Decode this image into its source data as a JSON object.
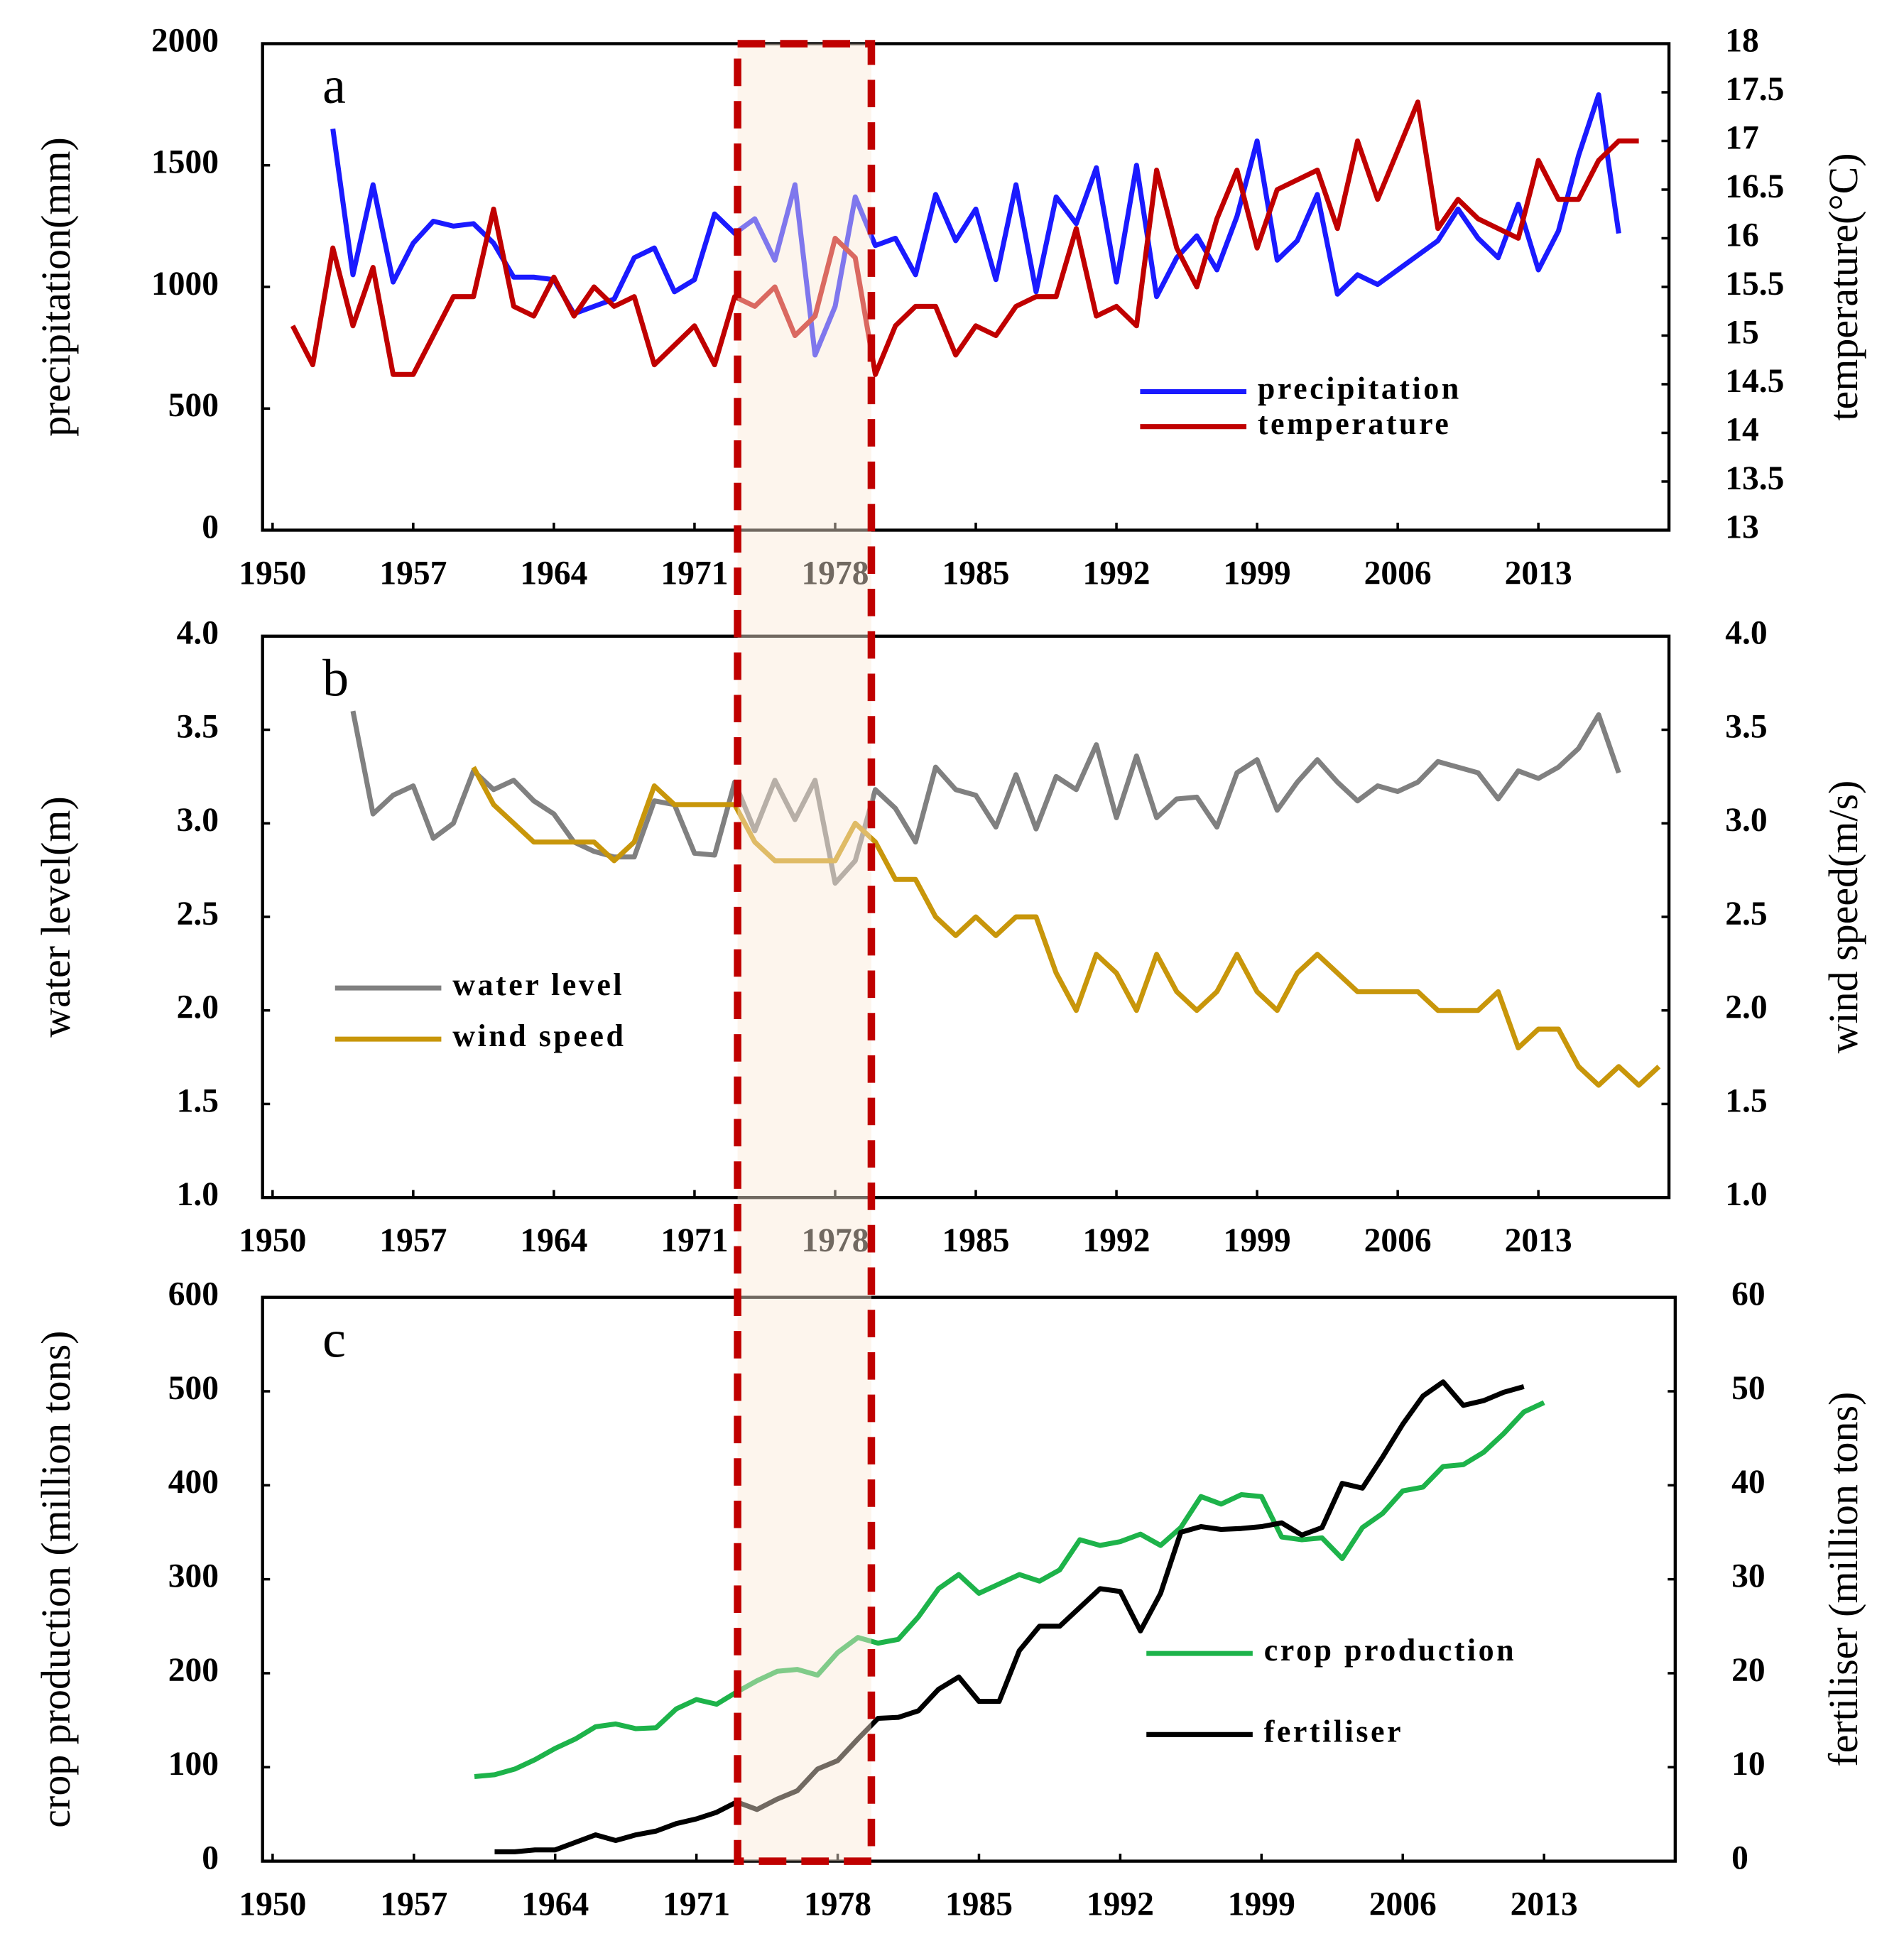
{
  "chart_data": [
    {
      "type": "line",
      "label": "a",
      "ylabel": "precipitation(mm)",
      "y2label": "temperature(°C)",
      "xlim": [
        1949.5,
        2019.5
      ],
      "xticks": [
        1950,
        1957,
        1964,
        1971,
        1978,
        1985,
        1992,
        1999,
        2006,
        2013
      ],
      "ylim": [
        0,
        2000
      ],
      "yticks": [
        0,
        500,
        1000,
        1500,
        2000
      ],
      "y2lim": [
        13,
        18
      ],
      "y2ticks": [
        13,
        13.5,
        14,
        14.5,
        15,
        15.5,
        16,
        16.5,
        17,
        17.5,
        18
      ],
      "legend": "lower right",
      "series": [
        {
          "name": "precipitation",
          "color": "#1a1aff",
          "x": [
            1953,
            1954,
            1955,
            1956,
            1957,
            1958,
            1959,
            1960,
            1961,
            1962,
            1963,
            1964,
            1965,
            1966,
            1967,
            1968,
            1969,
            1970,
            1971,
            1972,
            1973,
            1974,
            1975,
            1976,
            1977,
            1978,
            1979,
            1980,
            1981,
            1982,
            1983,
            1984,
            1985,
            1986,
            1987,
            1988,
            1989,
            1990,
            1991,
            1992,
            1993,
            1994,
            1995,
            1996,
            1997,
            1998,
            1999,
            2000,
            2001,
            2002,
            2003,
            2004,
            2005,
            2006,
            2007,
            2008,
            2009,
            2010,
            2011,
            2012,
            2013,
            2014,
            2015,
            2016,
            2017
          ],
          "values": [
            1650,
            1050,
            1420,
            1020,
            1180,
            1270,
            1250,
            1260,
            1180,
            1040,
            1040,
            1030,
            890,
            920,
            950,
            1120,
            1160,
            980,
            1030,
            1300,
            1220,
            1280,
            1110,
            1420,
            720,
            920,
            1370,
            1170,
            1200,
            1050,
            1380,
            1190,
            1320,
            1030,
            1420,
            980,
            1370,
            1260,
            1490,
            1020,
            1500,
            960,
            1120,
            1210,
            1070,
            1290,
            1600,
            1110,
            1190,
            1380,
            970,
            1050,
            1010,
            1070,
            1130,
            1190,
            1320,
            1200,
            1120,
            1340,
            1070,
            1230,
            1540,
            1790,
            1220
          ]
        },
        {
          "name": "temperature",
          "color": "#c00000",
          "axis": "y2",
          "x": [
            1951,
            1952,
            1953,
            1954,
            1955,
            1956,
            1957,
            1958,
            1959,
            1960,
            1961,
            1962,
            1963,
            1964,
            1965,
            1966,
            1967,
            1968,
            1969,
            1970,
            1971,
            1972,
            1973,
            1974,
            1975,
            1976,
            1977,
            1978,
            1979,
            1980,
            1981,
            1982,
            1983,
            1984,
            1985,
            1986,
            1987,
            1988,
            1989,
            1990,
            1991,
            1992,
            1993,
            1994,
            1995,
            1996,
            1997,
            1998,
            1999,
            2000,
            2001,
            2002,
            2003,
            2004,
            2005,
            2006,
            2007,
            2008,
            2009,
            2010,
            2011,
            2012,
            2013,
            2014,
            2015,
            2016,
            2017,
            2018
          ],
          "values": [
            15.1,
            14.7,
            15.9,
            15.1,
            15.7,
            14.6,
            14.6,
            15.0,
            15.4,
            15.4,
            16.3,
            15.3,
            15.2,
            15.6,
            15.2,
            15.5,
            15.3,
            15.4,
            14.7,
            14.9,
            15.1,
            14.7,
            15.4,
            15.3,
            15.5,
            15.0,
            15.2,
            16.0,
            15.8,
            14.6,
            15.1,
            15.3,
            15.3,
            14.8,
            15.1,
            15.0,
            15.3,
            15.4,
            15.4,
            16.1,
            15.2,
            15.3,
            15.1,
            16.7,
            15.9,
            15.5,
            16.2,
            16.7,
            15.9,
            16.5,
            16.6,
            16.7,
            16.1,
            17.0,
            16.4,
            16.9,
            17.4,
            16.1,
            16.4,
            16.2,
            16.1,
            16.0,
            16.8,
            16.4,
            16.4,
            16.8,
            17.0,
            17.0
          ]
        }
      ]
    },
    {
      "type": "line",
      "label": "b",
      "ylabel": "water level(m)",
      "y2label": "wind speed(m/s)",
      "xlim": [
        1949.5,
        2019.5
      ],
      "xticks": [
        1950,
        1957,
        1964,
        1971,
        1978,
        1985,
        1992,
        1999,
        2006,
        2013
      ],
      "ylim": [
        1,
        4
      ],
      "yticks": [
        {
          "value": 1,
          "label": "1.0"
        },
        1.5,
        {
          "value": 2,
          "label": "2.0"
        },
        2.5,
        {
          "value": 3,
          "label": "3.0"
        },
        3.5,
        {
          "value": 4,
          "label": "4.0"
        }
      ],
      "y2lim": [
        1,
        4
      ],
      "y2ticks": [
        {
          "value": 1,
          "label": "1.0"
        },
        1.5,
        {
          "value": 2,
          "label": "2.0"
        },
        2.5,
        {
          "value": 3,
          "label": "3.0"
        },
        3.5,
        {
          "value": 4,
          "label": "4.0"
        }
      ],
      "legend": "center left",
      "series": [
        {
          "name": "water level",
          "color": "#808080",
          "x": [
            1954,
            1955,
            1956,
            1957,
            1958,
            1959,
            1960,
            1961,
            1962,
            1963,
            1964,
            1965,
            1966,
            1967,
            1968,
            1969,
            1970,
            1971,
            1972,
            1973,
            1974,
            1975,
            1976,
            1977,
            1978,
            1979,
            1980,
            1981,
            1982,
            1983,
            1984,
            1985,
            1986,
            1987,
            1988,
            1989,
            1990,
            1991,
            1992,
            1993,
            1994,
            1995,
            1996,
            1997,
            1998,
            1999,
            2000,
            2001,
            2002,
            2003,
            2004,
            2005,
            2006,
            2007,
            2008,
            2009,
            2010,
            2011,
            2012,
            2013,
            2014,
            2015,
            2016,
            2017
          ],
          "values": [
            3.6,
            3.05,
            3.15,
            3.2,
            2.92,
            3.0,
            3.28,
            3.18,
            3.23,
            3.12,
            3.05,
            2.9,
            2.85,
            2.82,
            2.82,
            3.12,
            3.1,
            2.84,
            2.83,
            3.22,
            2.96,
            3.23,
            3.02,
            3.23,
            2.68,
            2.8,
            3.18,
            3.08,
            2.9,
            3.3,
            3.18,
            3.15,
            2.98,
            3.26,
            2.97,
            3.25,
            3.18,
            3.42,
            3.03,
            3.36,
            3.03,
            3.13,
            3.14,
            2.98,
            3.27,
            3.34,
            3.07,
            3.22,
            3.34,
            3.22,
            3.12,
            3.2,
            3.17,
            3.22,
            3.33,
            3.3,
            3.27,
            3.13,
            3.28,
            3.24,
            3.3,
            3.4,
            3.58,
            3.27
          ]
        },
        {
          "name": "wind speed",
          "color": "#c8960a",
          "axis": "y2",
          "x": [
            1960,
            1961,
            1962,
            1963,
            1964,
            1965,
            1966,
            1967,
            1968,
            1969,
            1970,
            1971,
            1972,
            1973,
            1974,
            1975,
            1976,
            1977,
            1978,
            1979,
            1980,
            1981,
            1982,
            1983,
            1984,
            1985,
            1986,
            1987,
            1988,
            1989,
            1990,
            1991,
            1992,
            1993,
            1994,
            1995,
            1996,
            1997,
            1998,
            1999,
            2000,
            2001,
            2002,
            2003,
            2004,
            2005,
            2006,
            2007,
            2008,
            2009,
            2010,
            2011,
            2012,
            2013,
            2014,
            2015,
            2016,
            2017,
            2018,
            2019
          ],
          "values": [
            3.3,
            3.1,
            3.0,
            2.9,
            2.9,
            2.9,
            2.9,
            2.8,
            2.9,
            3.2,
            3.1,
            3.1,
            3.1,
            3.1,
            2.9,
            2.8,
            2.8,
            2.8,
            2.8,
            3.0,
            2.9,
            2.7,
            2.7,
            2.5,
            2.4,
            2.5,
            2.4,
            2.5,
            2.5,
            2.2,
            2.0,
            2.3,
            2.2,
            2.0,
            2.3,
            2.1,
            2.0,
            2.1,
            2.3,
            2.1,
            2.0,
            2.2,
            2.3,
            2.2,
            2.1,
            2.1,
            2.1,
            2.1,
            2.0,
            2.0,
            2.0,
            2.1,
            1.8,
            1.9,
            1.9,
            1.7,
            1.6,
            1.7,
            1.6,
            1.7
          ]
        }
      ]
    },
    {
      "type": "line",
      "label": "c",
      "ylabel": "crop production (million tons)",
      "y2label": "fertiliser (million tons)",
      "xlim": [
        1949.5,
        2019.5
      ],
      "xticks": [
        1950,
        1957,
        1964,
        1971,
        1978,
        1985,
        1992,
        1999,
        2006,
        2013
      ],
      "ylim": [
        0,
        600
      ],
      "yticks": [
        0,
        100,
        200,
        300,
        400,
        500,
        600
      ],
      "y2lim": [
        0,
        60
      ],
      "y2ticks": [
        0,
        10,
        20,
        30,
        40,
        50,
        60
      ],
      "legend": "lower right",
      "series": [
        {
          "name": "crop production",
          "color": "#1db34a",
          "x": [
            1960,
            1961,
            1962,
            1963,
            1964,
            1965,
            1966,
            1967,
            1968,
            1969,
            1970,
            1971,
            1972,
            1973,
            1974,
            1975,
            1976,
            1977,
            1978,
            1979,
            1980,
            1981,
            1982,
            1983,
            1984,
            1985,
            1986,
            1987,
            1988,
            1989,
            1990,
            1991,
            1992,
            1993,
            1994,
            1995,
            1996,
            1997,
            1998,
            1999,
            2000,
            2001,
            2002,
            2003,
            2004,
            2005,
            2006,
            2007,
            2008,
            2009,
            2010,
            2011,
            2012,
            2013
          ],
          "values": [
            90,
            92,
            98,
            108,
            120,
            130,
            143,
            146,
            141,
            142,
            162,
            172,
            167,
            180,
            192,
            202,
            204,
            198,
            222,
            238,
            232,
            236,
            260,
            290,
            305,
            285,
            295,
            305,
            298,
            310,
            342,
            336,
            340,
            348,
            336,
            355,
            388,
            380,
            390,
            388,
            345,
            342,
            344,
            322,
            355,
            370,
            394,
            398,
            420,
            422,
            435,
            455,
            478,
            488
          ]
        },
        {
          "name": "fertiliser",
          "color": "#000000",
          "axis": "y2",
          "x": [
            1961,
            1962,
            1963,
            1964,
            1965,
            1966,
            1967,
            1968,
            1969,
            1970,
            1971,
            1972,
            1973,
            1974,
            1975,
            1976,
            1977,
            1978,
            1979,
            1980,
            1981,
            1982,
            1983,
            1984,
            1985,
            1986,
            1987,
            1988,
            1989,
            1990,
            1991,
            1992,
            1993,
            1994,
            1995,
            1996,
            1997,
            1998,
            1999,
            2000,
            2001,
            2002,
            2003,
            2004,
            2005,
            2006,
            2007,
            2008,
            2009,
            2010,
            2011,
            2012
          ],
          "values": [
            1,
            1,
            1.2,
            1.2,
            2,
            2.8,
            2.2,
            2.8,
            3.2,
            4,
            4.5,
            5.2,
            6.3,
            5.5,
            6.6,
            7.5,
            9.8,
            10.7,
            13,
            15.2,
            15.3,
            16,
            18.3,
            19.6,
            17,
            17,
            22.4,
            25,
            25,
            27,
            29,
            28.7,
            24.5,
            28.5,
            35,
            35.6,
            35.3,
            35.4,
            35.6,
            36,
            34.7,
            35.5,
            40.2,
            39.7,
            43,
            46.5,
            49.5,
            51,
            48.5,
            49,
            49.9,
            50.5
          ]
        }
      ]
    }
  ]
}
